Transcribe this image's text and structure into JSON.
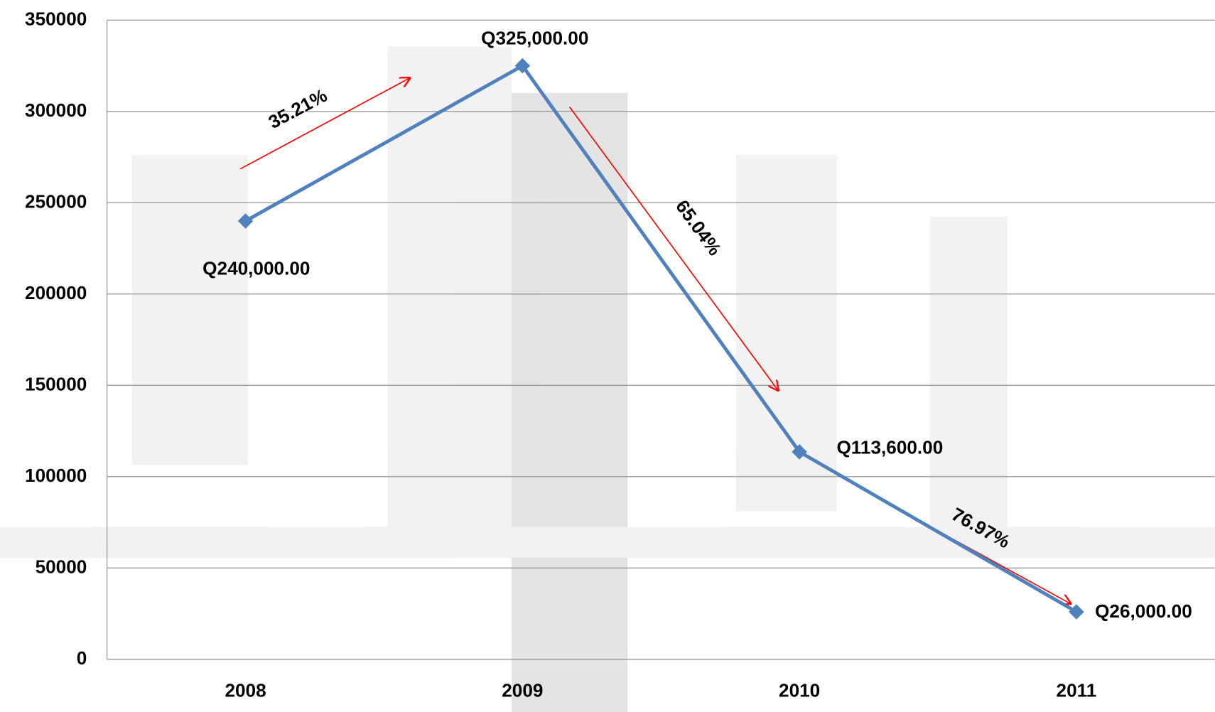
{
  "chart_data": {
    "type": "line",
    "categories": [
      "2008",
      "2009",
      "2010",
      "2011"
    ],
    "series": [
      {
        "name": "Monto",
        "color": "#4f81bd",
        "values": [
          240000,
          325000,
          113600,
          26000
        ],
        "value_labels": [
          "Q240,000.00",
          "Q325,000.00",
          "Q113,600.00",
          "Q26,000.00"
        ]
      }
    ],
    "ylim": [
      0,
      350000
    ],
    "yticks": [
      0,
      50000,
      100000,
      150000,
      200000,
      250000,
      300000,
      350000
    ],
    "grid": true,
    "annotations": [
      "35.21%",
      "65.04%",
      "76.97%"
    ],
    "annotation_color": "#ff0000"
  }
}
